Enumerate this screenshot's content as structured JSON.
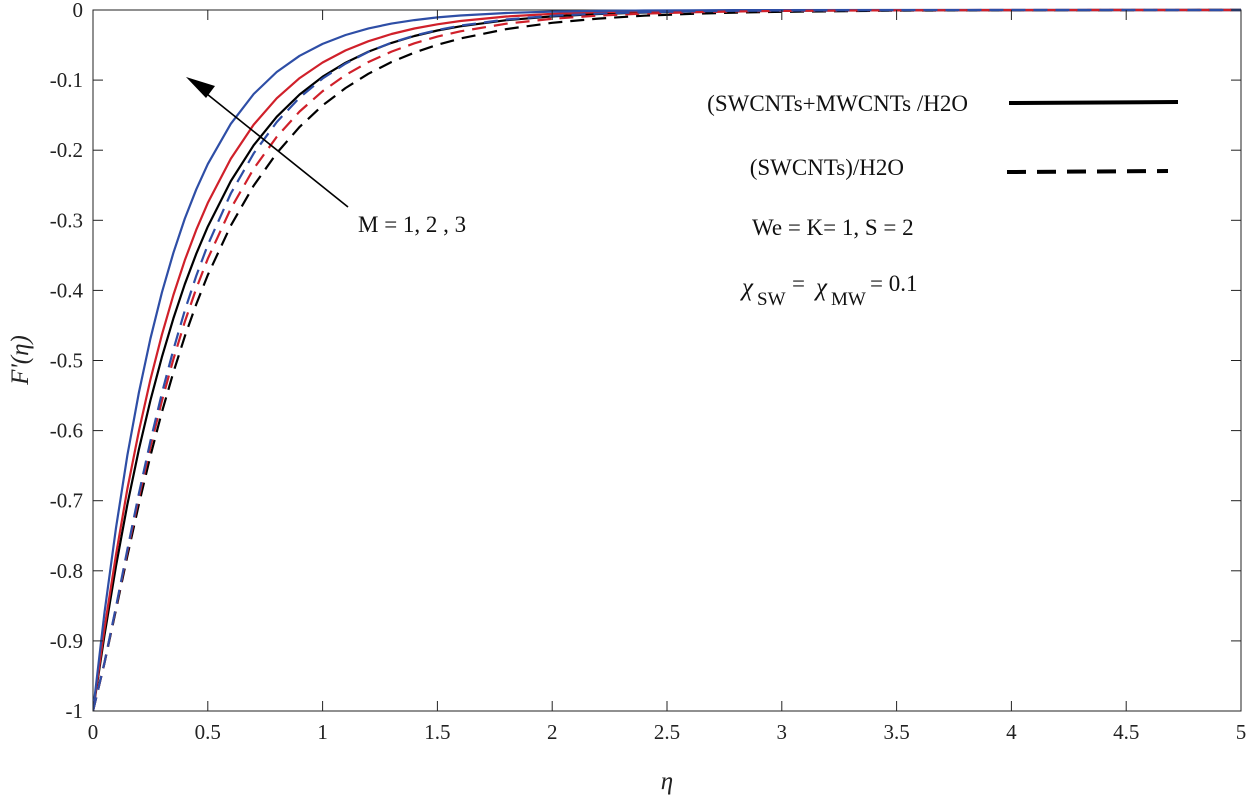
{
  "chart_data": {
    "type": "line",
    "title": "",
    "xlabel": "η",
    "ylabel": "F'(η)",
    "xlim": [
      0,
      5
    ],
    "ylim": [
      -1,
      0
    ],
    "xticks": [
      "0",
      "0.5",
      "1",
      "1.5",
      "2",
      "2.5",
      "3",
      "3.5",
      "4",
      "4.5",
      "5"
    ],
    "yticks": [
      "0",
      "-0.1",
      "-0.2",
      "-0.3",
      "-0.4",
      "-0.5",
      "-0.6",
      "-0.7",
      "-0.8",
      "-0.9",
      "-1"
    ],
    "grid": false,
    "legend_position": "top-right",
    "legend": [
      {
        "label": "(SWCNTs+MWCNTs /H2O",
        "style": "solid",
        "color": "#000000"
      },
      {
        "label": "(SWCNTs)/H2O",
        "style": "dashed",
        "color": "#000000"
      }
    ],
    "annotations": {
      "arrow_label": "M = 1, 2 , 3",
      "params": "We =  K= 1, S = 2",
      "chi_sym": "χ",
      "chi_sub_sw": "SW",
      "chi_eq": " =",
      "chi_sub_mw": "MW",
      "chi_val": " = 0.1"
    },
    "x": [
      0,
      0.05,
      0.1,
      0.15,
      0.2,
      0.25,
      0.3,
      0.35,
      0.4,
      0.45,
      0.5,
      0.6,
      0.7,
      0.8,
      0.9,
      1.0,
      1.1,
      1.2,
      1.3,
      1.4,
      1.5,
      1.6,
      1.8,
      2.0,
      2.2,
      2.4,
      2.6,
      2.8,
      3.0,
      3.5,
      4.0,
      4.5,
      5.0
    ],
    "series": [
      {
        "style": "solid",
        "color": "#000000",
        "values": [
          -1.0,
          -0.8917,
          -0.7933,
          -0.7052,
          -0.6268,
          -0.5571,
          -0.4951,
          -0.44,
          -0.3911,
          -0.3476,
          -0.309,
          -0.2441,
          -0.1929,
          -0.1524,
          -0.1205,
          -0.0952,
          -0.0752,
          -0.0594,
          -0.0469,
          -0.0371,
          -0.0293,
          -0.0232,
          -0.0145,
          -0.0091,
          -0.0057,
          -0.0035,
          -0.0022,
          -0.0014,
          -0.0009,
          -0.0003,
          -0.0001,
          0.0,
          0.0
        ]
      },
      {
        "style": "solid",
        "color": "#d0202a",
        "values": [
          -1.0,
          -0.8822,
          -0.7772,
          -0.6829,
          -0.6005,
          -0.5273,
          -0.4632,
          -0.4066,
          -0.357,
          -0.3134,
          -0.2752,
          -0.2121,
          -0.1635,
          -0.126,
          -0.0971,
          -0.0749,
          -0.0577,
          -0.0445,
          -0.0343,
          -0.0264,
          -0.0204,
          -0.0157,
          -0.0093,
          -0.0055,
          -0.0033,
          -0.0019,
          -0.0011,
          -0.0007,
          -0.0004,
          -0.0001,
          0.0,
          0.0,
          0.0
        ]
      },
      {
        "style": "solid",
        "color": "#2e4ea6",
        "values": [
          -1.0,
          -0.8595,
          -0.7388,
          -0.6349,
          -0.5456,
          -0.4689,
          -0.403,
          -0.3463,
          -0.2976,
          -0.2558,
          -0.2198,
          -0.1623,
          -0.1199,
          -0.0885,
          -0.0654,
          -0.0483,
          -0.0356,
          -0.0263,
          -0.0194,
          -0.0144,
          -0.0106,
          -0.0078,
          -0.0043,
          -0.0023,
          -0.0013,
          -0.0007,
          -0.0004,
          -0.0002,
          -0.0001,
          0.0,
          0.0,
          0.0,
          0.0
        ]
      },
      {
        "style": "dashed",
        "color": "#000000",
        "values": [
          -1.0,
          -0.9315,
          -0.8555,
          -0.7786,
          -0.7049,
          -0.6363,
          -0.5736,
          -0.5168,
          -0.4656,
          -0.4195,
          -0.3781,
          -0.3076,
          -0.2505,
          -0.2043,
          -0.1667,
          -0.1361,
          -0.1112,
          -0.0908,
          -0.0742,
          -0.0607,
          -0.0497,
          -0.0406,
          -0.0272,
          -0.0182,
          -0.0122,
          -0.0082,
          -0.0055,
          -0.0037,
          -0.0025,
          -0.0009,
          -0.0003,
          -0.0001,
          0.0
        ]
      },
      {
        "style": "dashed",
        "color": "#d0202a",
        "values": [
          -1.0,
          -0.9308,
          -0.8527,
          -0.7727,
          -0.6955,
          -0.6234,
          -0.5576,
          -0.4981,
          -0.4448,
          -0.3972,
          -0.3548,
          -0.2833,
          -0.2264,
          -0.181,
          -0.1448,
          -0.1159,
          -0.0927,
          -0.0742,
          -0.0594,
          -0.0475,
          -0.038,
          -0.0304,
          -0.0195,
          -0.0125,
          -0.008,
          -0.0051,
          -0.0033,
          -0.0021,
          -0.0013,
          -0.0004,
          -0.0001,
          0.0,
          0.0
        ]
      },
      {
        "style": "dashed",
        "color": "#2e4ea6",
        "values": [
          -1.0,
          -0.9306,
          -0.8514,
          -0.7695,
          -0.6898,
          -0.6151,
          -0.5466,
          -0.4845,
          -0.4287,
          -0.3791,
          -0.3351,
          -0.2617,
          -0.2045,
          -0.1599,
          -0.125,
          -0.0977,
          -0.0764,
          -0.0597,
          -0.0467,
          -0.0365,
          -0.0285,
          -0.0223,
          -0.0136,
          -0.0083,
          -0.0051,
          -0.0031,
          -0.0019,
          -0.0012,
          -0.0007,
          -0.0002,
          0.0,
          0.0,
          0.0
        ]
      }
    ]
  }
}
